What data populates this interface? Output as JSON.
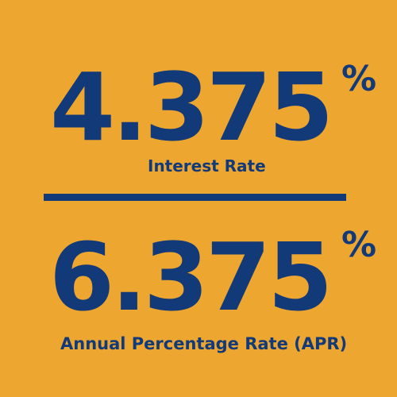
{
  "colors": {
    "background": "#EDA630",
    "text": "#123A78"
  },
  "interest_rate": {
    "value": "4.375",
    "unit": "%",
    "label": "Interest Rate"
  },
  "apr": {
    "value": "6.375",
    "unit": "%",
    "label": "Annual Percentage Rate (APR)"
  }
}
